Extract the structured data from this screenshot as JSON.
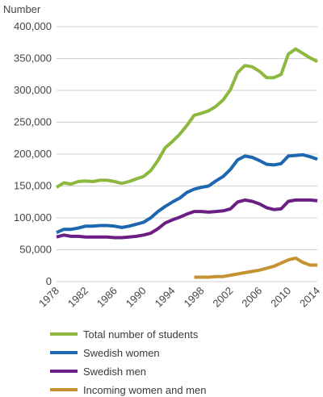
{
  "chart_data": {
    "type": "line",
    "ylabel": "Number",
    "ylim": [
      0,
      400000
    ],
    "xlim": [
      1978,
      2014
    ],
    "y_ticks": [
      0,
      50000,
      100000,
      150000,
      200000,
      250000,
      300000,
      350000,
      400000
    ],
    "y_tick_labels": [
      "0",
      "50,000",
      "100,000",
      "150,000",
      "200,000",
      "250,000",
      "300,000",
      "350,000",
      "400,000"
    ],
    "x_ticks": [
      1978,
      1982,
      1986,
      1990,
      1994,
      1998,
      2002,
      2006,
      2010,
      2014
    ],
    "x_tick_labels": [
      "1978",
      "1982",
      "1986",
      "1990",
      "1994",
      "1998",
      "2002",
      "2006",
      "2010",
      "2014"
    ],
    "grid": "horizontal",
    "legend_position": "bottom",
    "series": [
      {
        "name": "Total number of students",
        "color": "#8db83f",
        "x": [
          1978,
          1979,
          1980,
          1981,
          1982,
          1983,
          1984,
          1985,
          1986,
          1987,
          1988,
          1989,
          1990,
          1991,
          1992,
          1993,
          1994,
          1995,
          1996,
          1997,
          1998,
          1999,
          2000,
          2001,
          2002,
          2003,
          2004,
          2005,
          2006,
          2007,
          2008,
          2009,
          2010,
          2011,
          2012,
          2013,
          2014
        ],
        "values": [
          148000,
          155000,
          153000,
          157000,
          158000,
          157000,
          159000,
          159000,
          157000,
          154000,
          157000,
          161000,
          165000,
          174000,
          190000,
          210000,
          220000,
          231000,
          245000,
          261000,
          264000,
          268000,
          275000,
          285000,
          301000,
          328000,
          339000,
          337000,
          330000,
          320000,
          320000,
          325000,
          357000,
          365000,
          358000,
          351000,
          345000
        ]
      },
      {
        "name": "Swedish women",
        "color": "#1d66b0",
        "x": [
          1978,
          1979,
          1980,
          1981,
          1982,
          1983,
          1984,
          1985,
          1986,
          1987,
          1988,
          1989,
          1990,
          1991,
          1992,
          1993,
          1994,
          1995,
          1996,
          1997,
          1998,
          1999,
          2000,
          2001,
          2002,
          2003,
          2004,
          2005,
          2006,
          2007,
          2008,
          2009,
          2010,
          2011,
          2012,
          2013,
          2014
        ],
        "values": [
          77000,
          82000,
          82000,
          84000,
          87000,
          87000,
          88000,
          88000,
          87000,
          85000,
          87000,
          90000,
          93000,
          100000,
          110000,
          118000,
          125000,
          131000,
          140000,
          145000,
          148000,
          150000,
          158000,
          165000,
          176000,
          191000,
          197000,
          195000,
          190000,
          184000,
          183000,
          185000,
          197000,
          198000,
          199000,
          196000,
          192000
        ]
      },
      {
        "name": "Swedish men",
        "color": "#6b1f84",
        "x": [
          1978,
          1979,
          1980,
          1981,
          1982,
          1983,
          1984,
          1985,
          1986,
          1987,
          1988,
          1989,
          1990,
          1991,
          1992,
          1993,
          1994,
          1995,
          1996,
          1997,
          1998,
          1999,
          2000,
          2001,
          2002,
          2003,
          2004,
          2005,
          2006,
          2007,
          2008,
          2009,
          2010,
          2011,
          2012,
          2013,
          2014
        ],
        "values": [
          70000,
          73000,
          71000,
          71000,
          70000,
          70000,
          70000,
          70000,
          69000,
          69000,
          70000,
          71000,
          73000,
          76000,
          83000,
          92000,
          97000,
          101000,
          106000,
          110000,
          110000,
          109000,
          110000,
          111000,
          114000,
          125000,
          128000,
          126000,
          122000,
          116000,
          113000,
          114000,
          126000,
          128000,
          128000,
          128000,
          127000
        ]
      },
      {
        "name": "Incoming women and men",
        "color": "#c49233",
        "x": [
          1997,
          1998,
          1999,
          2000,
          2001,
          2002,
          2003,
          2004,
          2005,
          2006,
          2007,
          2008,
          2009,
          2010,
          2011,
          2012,
          2013,
          2014
        ],
        "values": [
          7000,
          7000,
          7000,
          8000,
          8000,
          10000,
          12000,
          14000,
          16000,
          18000,
          21000,
          24000,
          29000,
          34000,
          37000,
          30000,
          26000,
          26000
        ]
      }
    ]
  }
}
